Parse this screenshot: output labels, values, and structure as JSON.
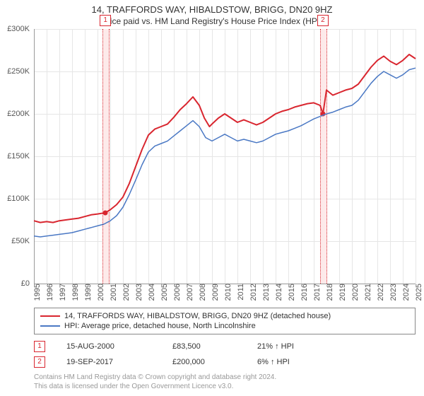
{
  "title": "14, TRAFFORDS WAY, HIBALDSTOW, BRIGG, DN20 9HZ",
  "subtitle": "Price paid vs. HM Land Registry's House Price Index (HPI)",
  "chart": {
    "type": "line",
    "background_color": "#ffffff",
    "grid_color": "#e6e6e6",
    "axis_color": "#999999",
    "label_color": "#555555",
    "label_fontsize": 11,
    "y": {
      "min": 0,
      "max": 300000,
      "tick_step": 50000,
      "tick_labels": [
        "£0",
        "£50K",
        "£100K",
        "£150K",
        "£200K",
        "£250K",
        "£300K"
      ]
    },
    "x": {
      "min": 1995,
      "max": 2025,
      "ticks": [
        1995,
        1996,
        1997,
        1998,
        1999,
        2000,
        2001,
        2002,
        2003,
        2004,
        2005,
        2006,
        2007,
        2008,
        2009,
        2010,
        2011,
        2012,
        2013,
        2014,
        2015,
        2016,
        2017,
        2018,
        2019,
        2020,
        2021,
        2022,
        2023,
        2024,
        2025
      ]
    },
    "series": [
      {
        "name": "14, TRAFFORDS WAY, HIBALDSTOW, BRIGG, DN20 9HZ (detached house)",
        "color": "#d9262f",
        "width": 2,
        "data": [
          [
            1995,
            74000
          ],
          [
            1995.5,
            72000
          ],
          [
            1996,
            73000
          ],
          [
            1996.5,
            72000
          ],
          [
            1997,
            74000
          ],
          [
            1997.5,
            75000
          ],
          [
            1998,
            76000
          ],
          [
            1998.5,
            77000
          ],
          [
            1999,
            79000
          ],
          [
            1999.5,
            81000
          ],
          [
            2000,
            82000
          ],
          [
            2000.62,
            83500
          ],
          [
            2001,
            87000
          ],
          [
            2001.5,
            93000
          ],
          [
            2002,
            102000
          ],
          [
            2002.5,
            118000
          ],
          [
            2003,
            138000
          ],
          [
            2003.5,
            158000
          ],
          [
            2004,
            175000
          ],
          [
            2004.5,
            182000
          ],
          [
            2005,
            185000
          ],
          [
            2005.5,
            188000
          ],
          [
            2006,
            196000
          ],
          [
            2006.5,
            205000
          ],
          [
            2007,
            212000
          ],
          [
            2007.5,
            220000
          ],
          [
            2008,
            210000
          ],
          [
            2008.4,
            195000
          ],
          [
            2008.8,
            185000
          ],
          [
            2009,
            188000
          ],
          [
            2009.5,
            195000
          ],
          [
            2010,
            200000
          ],
          [
            2010.5,
            195000
          ],
          [
            2011,
            190000
          ],
          [
            2011.5,
            193000
          ],
          [
            2012,
            190000
          ],
          [
            2012.5,
            187000
          ],
          [
            2013,
            190000
          ],
          [
            2013.5,
            195000
          ],
          [
            2014,
            200000
          ],
          [
            2014.5,
            203000
          ],
          [
            2015,
            205000
          ],
          [
            2015.5,
            208000
          ],
          [
            2016,
            210000
          ],
          [
            2016.5,
            212000
          ],
          [
            2017,
            213000
          ],
          [
            2017.5,
            210000
          ],
          [
            2017.72,
            200000
          ],
          [
            2018,
            228000
          ],
          [
            2018.5,
            222000
          ],
          [
            2019,
            225000
          ],
          [
            2019.5,
            228000
          ],
          [
            2020,
            230000
          ],
          [
            2020.5,
            235000
          ],
          [
            2021,
            245000
          ],
          [
            2021.5,
            255000
          ],
          [
            2022,
            263000
          ],
          [
            2022.5,
            268000
          ],
          [
            2023,
            262000
          ],
          [
            2023.5,
            258000
          ],
          [
            2024,
            263000
          ],
          [
            2024.5,
            270000
          ],
          [
            2025,
            265000
          ]
        ]
      },
      {
        "name": "HPI: Average price, detached house, North Lincolnshire",
        "color": "#4a78c4",
        "width": 1.5,
        "data": [
          [
            1995,
            56000
          ],
          [
            1995.5,
            55000
          ],
          [
            1996,
            56000
          ],
          [
            1996.5,
            57000
          ],
          [
            1997,
            58000
          ],
          [
            1997.5,
            59000
          ],
          [
            1998,
            60000
          ],
          [
            1998.5,
            62000
          ],
          [
            1999,
            64000
          ],
          [
            1999.5,
            66000
          ],
          [
            2000,
            68000
          ],
          [
            2000.5,
            70000
          ],
          [
            2001,
            74000
          ],
          [
            2001.5,
            80000
          ],
          [
            2002,
            90000
          ],
          [
            2002.5,
            105000
          ],
          [
            2003,
            122000
          ],
          [
            2003.5,
            140000
          ],
          [
            2004,
            155000
          ],
          [
            2004.5,
            162000
          ],
          [
            2005,
            165000
          ],
          [
            2005.5,
            168000
          ],
          [
            2006,
            174000
          ],
          [
            2006.5,
            180000
          ],
          [
            2007,
            186000
          ],
          [
            2007.5,
            192000
          ],
          [
            2008,
            185000
          ],
          [
            2008.5,
            172000
          ],
          [
            2009,
            168000
          ],
          [
            2009.5,
            172000
          ],
          [
            2010,
            176000
          ],
          [
            2010.5,
            172000
          ],
          [
            2011,
            168000
          ],
          [
            2011.5,
            170000
          ],
          [
            2012,
            168000
          ],
          [
            2012.5,
            166000
          ],
          [
            2013,
            168000
          ],
          [
            2013.5,
            172000
          ],
          [
            2014,
            176000
          ],
          [
            2014.5,
            178000
          ],
          [
            2015,
            180000
          ],
          [
            2015.5,
            183000
          ],
          [
            2016,
            186000
          ],
          [
            2016.5,
            190000
          ],
          [
            2017,
            194000
          ],
          [
            2017.5,
            197000
          ],
          [
            2018,
            200000
          ],
          [
            2018.5,
            202000
          ],
          [
            2019,
            205000
          ],
          [
            2019.5,
            208000
          ],
          [
            2020,
            210000
          ],
          [
            2020.5,
            216000
          ],
          [
            2021,
            226000
          ],
          [
            2021.5,
            236000
          ],
          [
            2022,
            244000
          ],
          [
            2022.5,
            250000
          ],
          [
            2023,
            246000
          ],
          [
            2023.5,
            242000
          ],
          [
            2024,
            246000
          ],
          [
            2024.5,
            252000
          ],
          [
            2025,
            254000
          ]
        ]
      }
    ],
    "markers": [
      {
        "id": "1",
        "x": 2000.62,
        "y": 83500,
        "band_color": "#fdeaea",
        "edge_color": "#d9262f",
        "date": "15-AUG-2000",
        "price": "£83,500",
        "delta": "21% ↑ HPI"
      },
      {
        "id": "2",
        "x": 2017.72,
        "y": 200000,
        "band_color": "#fdeaea",
        "edge_color": "#d9262f",
        "date": "19-SEP-2017",
        "price": "£200,000",
        "delta": "6% ↑ HPI"
      }
    ]
  },
  "footnote_line1": "Contains HM Land Registry data © Crown copyright and database right 2024.",
  "footnote_line2": "This data is licensed under the Open Government Licence v3.0."
}
